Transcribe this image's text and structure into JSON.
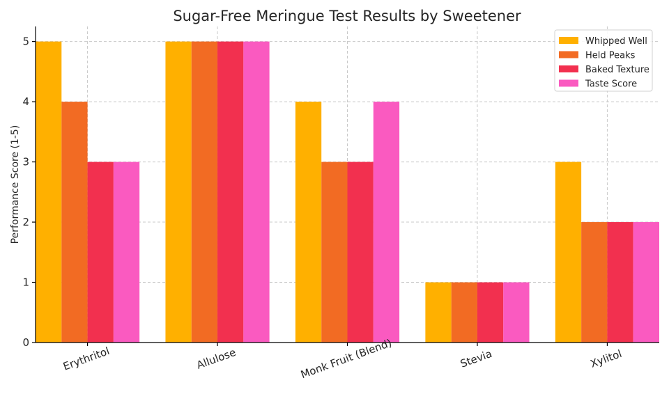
{
  "chart_data": {
    "type": "bar",
    "title": "Sugar-Free Meringue Test Results by Sweetener",
    "xlabel": "",
    "ylabel": "Performance Score (1-5)",
    "ylim": [
      0,
      5.25
    ],
    "yticks": [
      0,
      1,
      2,
      3,
      4,
      5
    ],
    "grid": true,
    "legend_position": "top-right",
    "categories": [
      "Erythritol",
      "Allulose",
      "Monk Fruit (Blend)",
      "Stevia",
      "Xylitol"
    ],
    "series": [
      {
        "name": "Whipped Well",
        "color": "#FFB000",
        "values": [
          5,
          5,
          4,
          1,
          3
        ]
      },
      {
        "name": "Held Peaks",
        "color": "#F26B23",
        "values": [
          4,
          5,
          3,
          1,
          2
        ]
      },
      {
        "name": "Baked Texture",
        "color": "#F2304F",
        "values": [
          3,
          5,
          3,
          1,
          2
        ]
      },
      {
        "name": "Taste Score",
        "color": "#FA5AC0",
        "values": [
          3,
          5,
          4,
          1,
          2
        ]
      }
    ]
  }
}
